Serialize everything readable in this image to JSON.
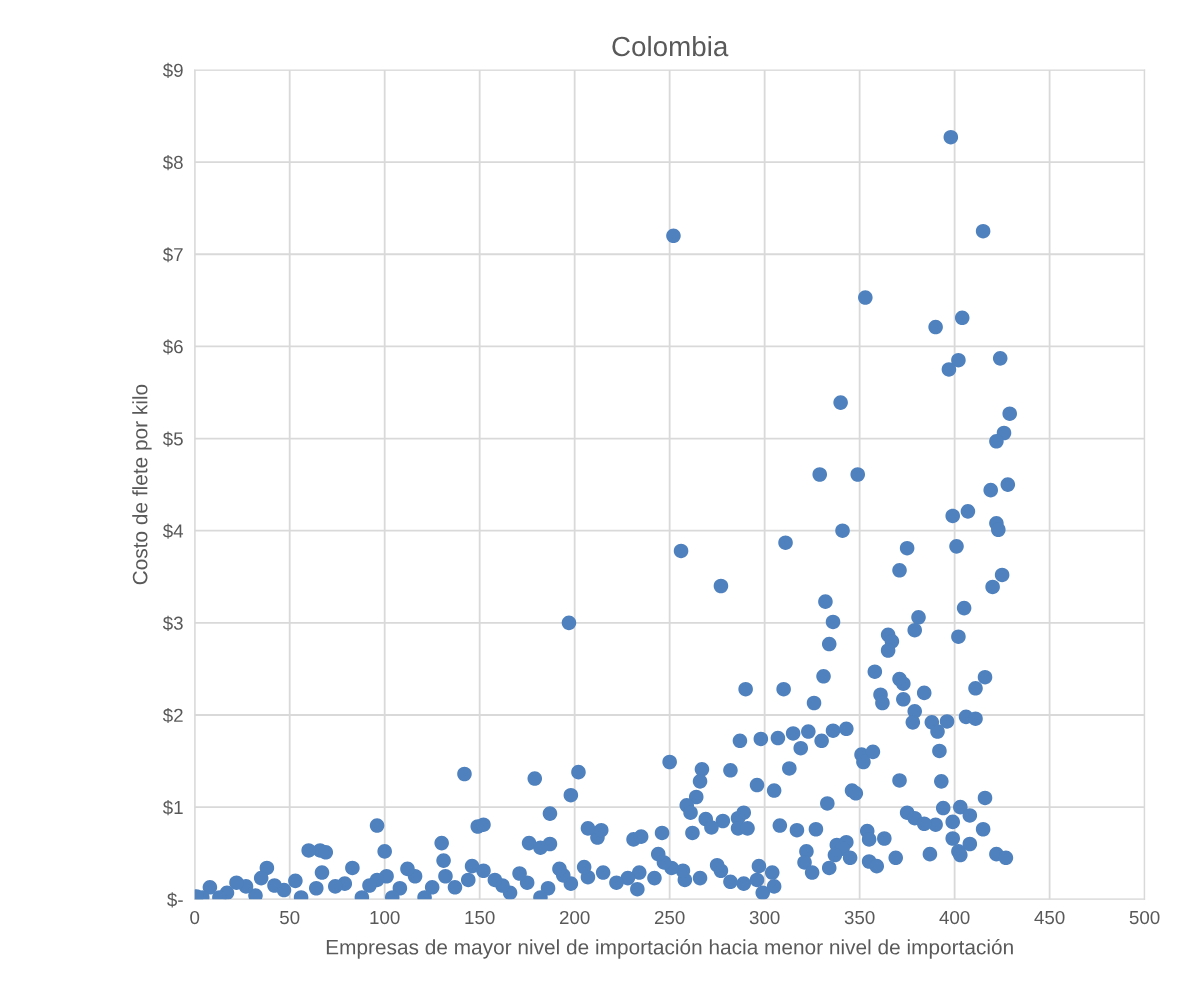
{
  "chart_data": {
    "type": "scatter",
    "title": "Colombia",
    "xlabel": "Empresas de mayor nivel de importación hacia menor nivel de importación",
    "ylabel": "Costo de flete por kilo",
    "xlim": [
      0,
      500
    ],
    "xticks": [
      0,
      50,
      100,
      150,
      200,
      250,
      300,
      350,
      400,
      450,
      500
    ],
    "ylim": [
      0,
      9
    ],
    "yticks": [
      {
        "value": 0,
        "label": "$-"
      },
      {
        "value": 1,
        "label": "$1"
      },
      {
        "value": 2,
        "label": "$2"
      },
      {
        "value": 3,
        "label": "$3"
      },
      {
        "value": 4,
        "label": "$4"
      },
      {
        "value": 5,
        "label": "$5"
      },
      {
        "value": 6,
        "label": "$6"
      },
      {
        "value": 7,
        "label": "$7"
      },
      {
        "value": 8,
        "label": "$8"
      },
      {
        "value": 9,
        "label": "$9"
      }
    ],
    "grid": true,
    "marker": "circle",
    "legend": false,
    "series": [
      {
        "color": "#4e81bd",
        "x": [
          398,
          252,
          415,
          353,
          390,
          404,
          402,
          424,
          397,
          340,
          429,
          426,
          422,
          329,
          349,
          428,
          419,
          407,
          399,
          422,
          423,
          341,
          401,
          375,
          256,
          311,
          425,
          371,
          420,
          277,
          332,
          405,
          381,
          336,
          197,
          379,
          365,
          367,
          334,
          402,
          365,
          358,
          331,
          371,
          373,
          416,
          411,
          290,
          310,
          361,
          384,
          362,
          326,
          373,
          379,
          406,
          411,
          378,
          396,
          388,
          391,
          287,
          298,
          307,
          330,
          315,
          336,
          323,
          343,
          319,
          351,
          357,
          352,
          392,
          313,
          250,
          267,
          282,
          142,
          202,
          179,
          266,
          371,
          393,
          296,
          305,
          346,
          348,
          198,
          264,
          416,
          333,
          259,
          261,
          289,
          187,
          394,
          403,
          408,
          375,
          379,
          269,
          278,
          286,
          286,
          291,
          308,
          272,
          390,
          399,
          384,
          415,
          327,
          317,
          96,
          149,
          152,
          212,
          207,
          214,
          246,
          262,
          231,
          235,
          100,
          66,
          69,
          60,
          130,
          187,
          176,
          182,
          354,
          355,
          338,
          343,
          341,
          399,
          408,
          402,
          363,
          387,
          403,
          422,
          427,
          369,
          355,
          359,
          322,
          321,
          337,
          345,
          325,
          334,
          304,
          297,
          296,
          299,
          305,
          289,
          282,
          277,
          275,
          266,
          258,
          257,
          251,
          247,
          244,
          242,
          234,
          228,
          233,
          222,
          215,
          207,
          205,
          198,
          194,
          192,
          186,
          182,
          175,
          171,
          166,
          162,
          158,
          152,
          146,
          144,
          137,
          132,
          131,
          125,
          121,
          116,
          112,
          108,
          104,
          101,
          96,
          92,
          88,
          83,
          79,
          74,
          67,
          64,
          56,
          53,
          47,
          42,
          38,
          35,
          32,
          27,
          22,
          17,
          13,
          8,
          4,
          1
        ],
        "values": [
          8.27,
          7.2,
          7.25,
          6.53,
          6.21,
          6.31,
          5.85,
          5.87,
          5.75,
          5.39,
          5.27,
          5.06,
          4.97,
          4.61,
          4.61,
          4.5,
          4.44,
          4.21,
          4.16,
          4.08,
          4.01,
          4.0,
          3.83,
          3.81,
          3.78,
          3.87,
          3.52,
          3.57,
          3.39,
          3.4,
          3.23,
          3.16,
          3.06,
          3.01,
          3.0,
          2.92,
          2.87,
          2.8,
          2.77,
          2.85,
          2.7,
          2.47,
          2.42,
          2.39,
          2.34,
          2.41,
          2.29,
          2.28,
          2.28,
          2.22,
          2.24,
          2.13,
          2.13,
          2.17,
          2.04,
          1.98,
          1.96,
          1.92,
          1.93,
          1.92,
          1.82,
          1.72,
          1.74,
          1.75,
          1.72,
          1.8,
          1.83,
          1.82,
          1.85,
          1.64,
          1.57,
          1.6,
          1.49,
          1.61,
          1.42,
          1.49,
          1.41,
          1.4,
          1.36,
          1.38,
          1.31,
          1.28,
          1.29,
          1.28,
          1.24,
          1.18,
          1.18,
          1.15,
          1.13,
          1.11,
          1.1,
          1.04,
          1.02,
          0.94,
          0.94,
          0.93,
          0.99,
          1.0,
          0.91,
          0.94,
          0.88,
          0.87,
          0.85,
          0.88,
          0.77,
          0.77,
          0.8,
          0.78,
          0.81,
          0.84,
          0.82,
          0.76,
          0.76,
          0.75,
          0.8,
          0.79,
          0.81,
          0.67,
          0.77,
          0.75,
          0.72,
          0.72,
          0.65,
          0.68,
          0.52,
          0.53,
          0.51,
          0.53,
          0.61,
          0.6,
          0.61,
          0.56,
          0.74,
          0.65,
          0.59,
          0.62,
          0.55,
          0.66,
          0.6,
          0.52,
          0.66,
          0.49,
          0.48,
          0.49,
          0.45,
          0.45,
          0.41,
          0.36,
          0.52,
          0.4,
          0.48,
          0.45,
          0.29,
          0.34,
          0.29,
          0.36,
          0.21,
          0.07,
          0.14,
          0.17,
          0.19,
          0.31,
          0.37,
          0.23,
          0.21,
          0.31,
          0.34,
          0.4,
          0.49,
          0.23,
          0.29,
          0.23,
          0.11,
          0.18,
          0.29,
          0.24,
          0.35,
          0.17,
          0.26,
          0.33,
          0.12,
          0.02,
          0.18,
          0.28,
          0.07,
          0.15,
          0.21,
          0.31,
          0.36,
          0.21,
          0.13,
          0.25,
          0.42,
          0.13,
          0.02,
          0.25,
          0.33,
          0.12,
          0.02,
          0.25,
          0.21,
          0.15,
          0.02,
          0.34,
          0.17,
          0.14,
          0.29,
          0.12,
          0.02,
          0.2,
          0.1,
          0.15,
          0.34,
          0.23,
          0.04,
          0.14,
          0.18,
          0.07,
          0.02,
          0.13,
          0.02,
          0.03
        ]
      }
    ]
  }
}
